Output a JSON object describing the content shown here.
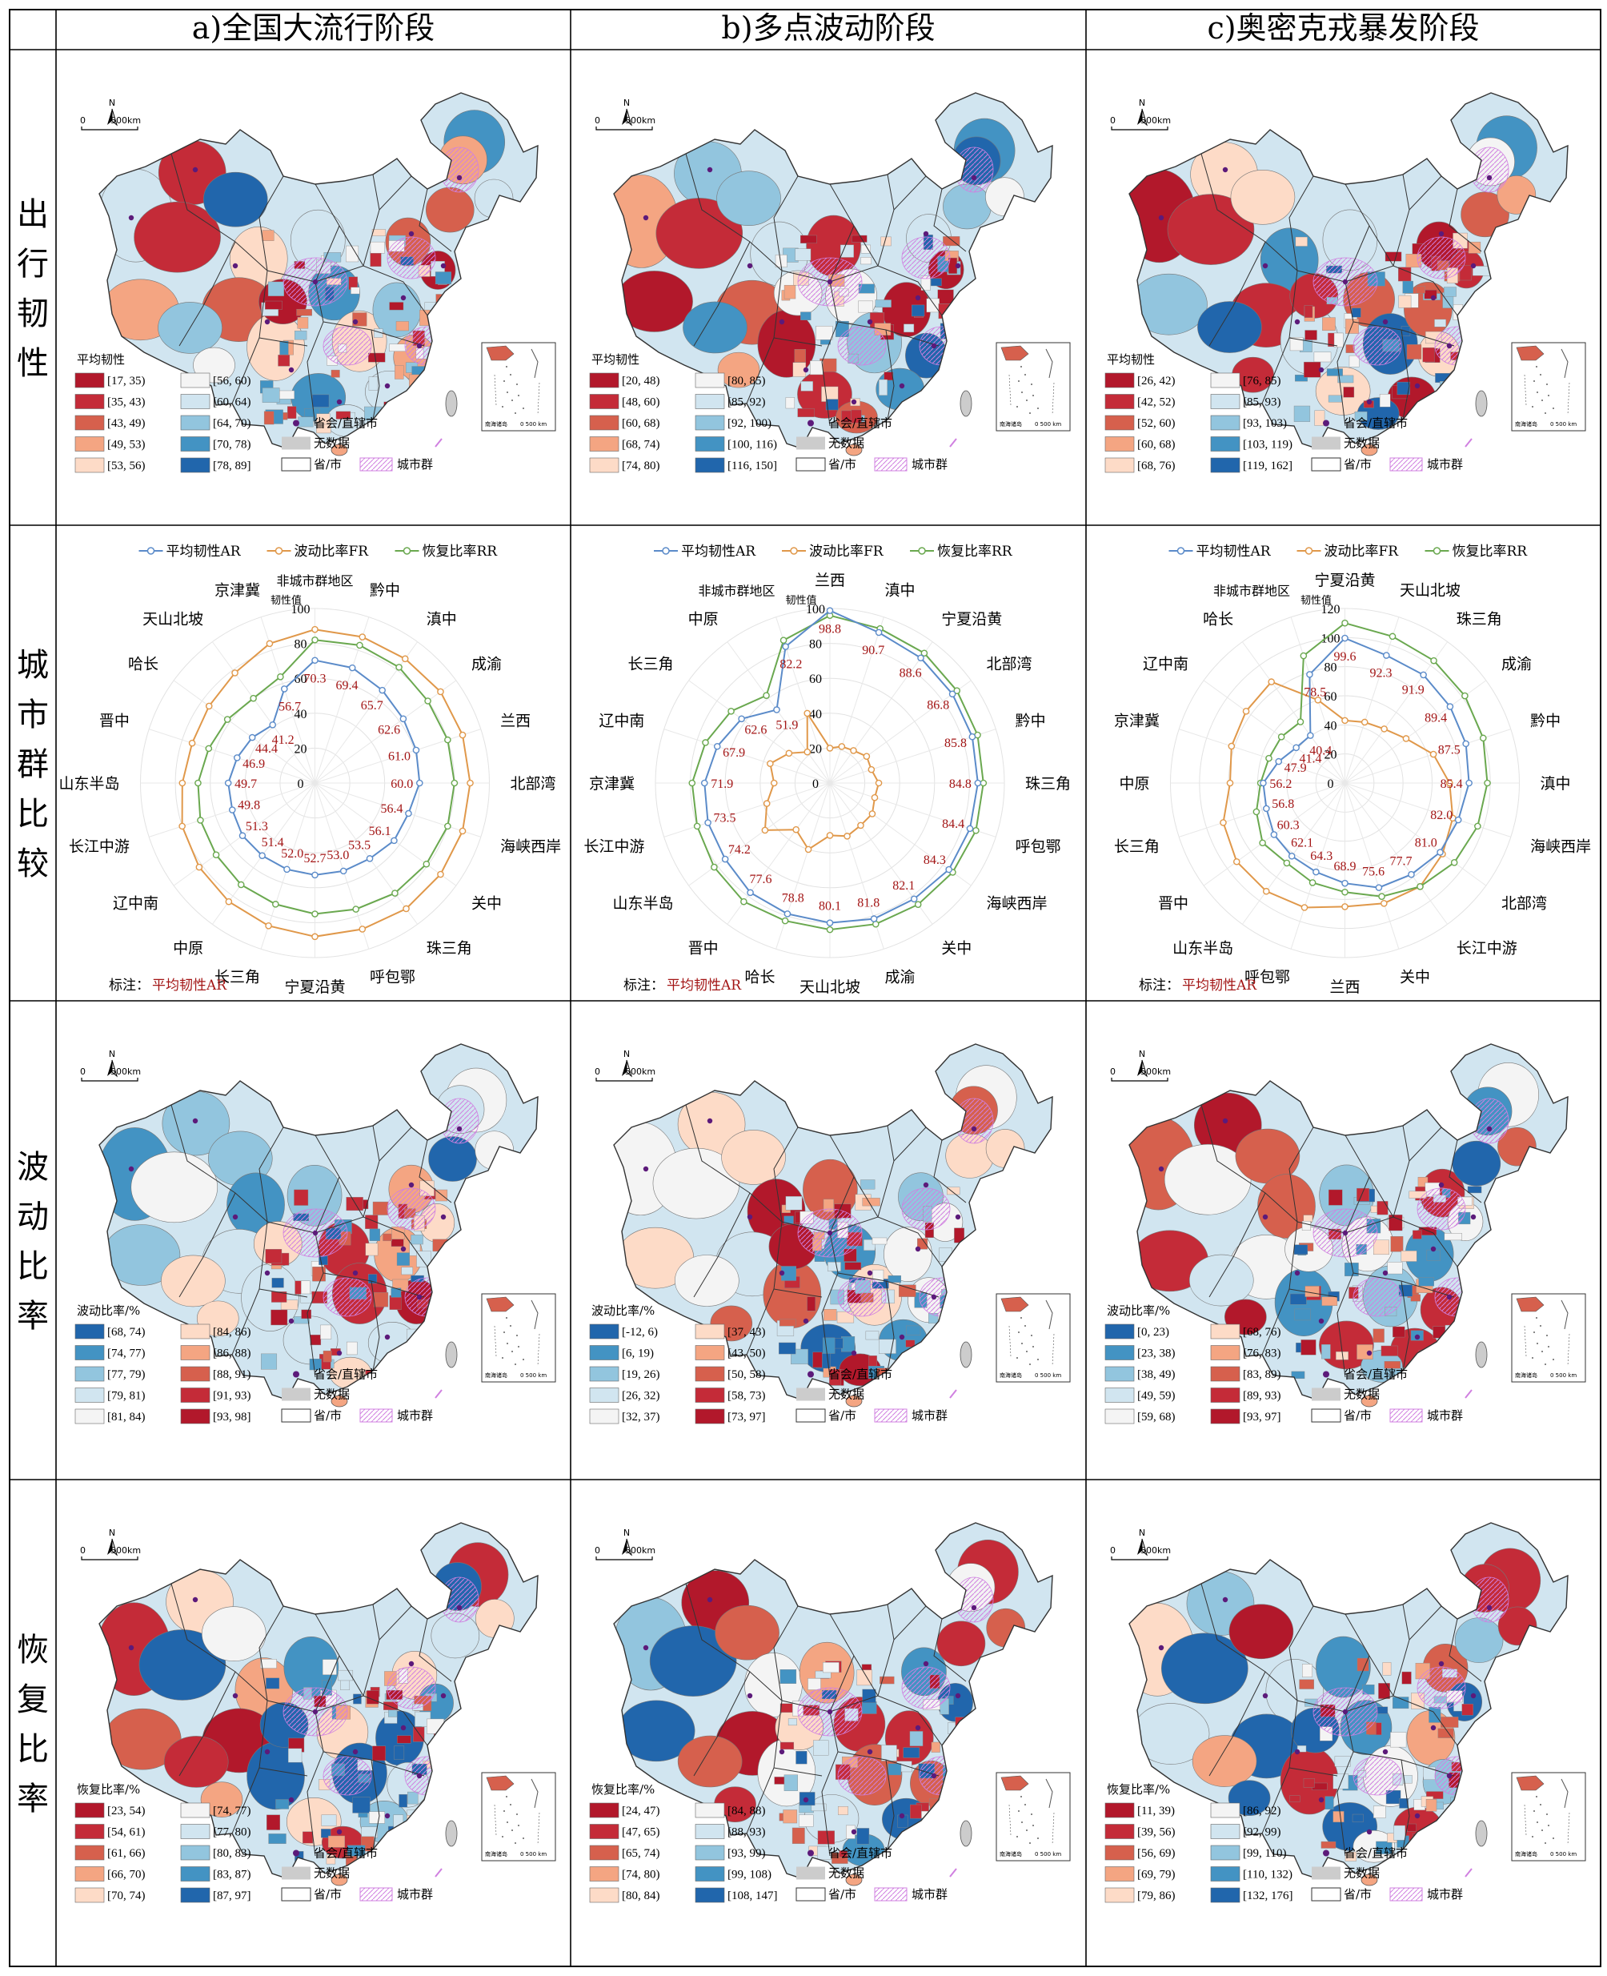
{
  "columns": [
    "a)全国大流行阶段",
    "b)多点波动阶段",
    "c)奥密克戎暴发阶段"
  ],
  "rows": [
    "出行韧性",
    "城市群比较",
    "波动比率",
    "恢复比率"
  ],
  "map_common": {
    "north": "N",
    "scale_zero": "0",
    "scale_label": "500km",
    "inset_label": "南海诸岛",
    "inset_scale": "0   500 km",
    "capital": "省会/直辖市",
    "nodata": "无数据",
    "province": "省/市",
    "agglomeration": "城市群"
  },
  "colors": {
    "red": [
      "#b2182b",
      "#c42b38",
      "#d6604d",
      "#f4a582",
      "#fddbc7"
    ],
    "blue": [
      "#f4f4f4",
      "#d1e5f0",
      "#92c5de",
      "#4393c3",
      "#2166ac"
    ],
    "nodata": "#cccccc",
    "capital": "#5c1a7a",
    "agglomeration": "#d080e0",
    "AR": "#5b8bc9",
    "FR": "#e0984a",
    "RR": "#6aa84f",
    "label": "#a31515"
  },
  "maps": {
    "travel": {
      "title": "平均韧性",
      "a": {
        "left": [
          "[17, 35)",
          "[35, 43)",
          "[43, 49)",
          "[49, 53)",
          "[53, 56)"
        ],
        "right": [
          "[56, 60)",
          "[60, 64)",
          "[64, 70)",
          "[70, 78)",
          "[78, 89]"
        ]
      },
      "b": {
        "left": [
          "[20, 48)",
          "[48, 60)",
          "[60, 68)",
          "[68, 74)",
          "[74, 80)"
        ],
        "right": [
          "[80, 85)",
          "[85, 92)",
          "[92, 100)",
          "[100, 116)",
          "[116, 150]"
        ]
      },
      "c": {
        "left": [
          "[26, 42)",
          "[42, 52)",
          "[52, 60)",
          "[60, 68)",
          "[68, 76)"
        ],
        "right": [
          "[76, 85)",
          "[85, 93)",
          "[93, 103)",
          "[103, 119)",
          "[119, 162]"
        ]
      }
    },
    "fluct": {
      "title": "波动比率/%",
      "a": {
        "left": [
          "[68, 74)",
          "[74, 77)",
          "[77, 79)",
          "[79, 81)",
          "[81, 84)"
        ],
        "right": [
          "[84, 86)",
          "[86, 88)",
          "[88, 91)",
          "[91, 93)",
          "[93, 98]"
        ]
      },
      "b": {
        "left": [
          "[-12, 6)",
          "[6, 19)",
          "[19, 26)",
          "[26, 32)",
          "[32, 37)"
        ],
        "right": [
          "[37, 43)",
          "[43, 50)",
          "[50, 58)",
          "[58, 73)",
          "[73, 97]"
        ]
      },
      "c": {
        "left": [
          "[0, 23)",
          "[23, 38)",
          "[38, 49)",
          "[49, 59)",
          "[59, 68)"
        ],
        "right": [
          "[68, 76)",
          "[76, 83)",
          "[83, 89)",
          "[89, 93)",
          "[93, 97]"
        ]
      }
    },
    "recov": {
      "title": "恢复比率/%",
      "a": {
        "left": [
          "[23, 54)",
          "[54, 61)",
          "[61, 66)",
          "[66, 70)",
          "[70, 74)"
        ],
        "right": [
          "[74, 77)",
          "[77, 80)",
          "[80, 83)",
          "[83, 87)",
          "[87, 97]"
        ]
      },
      "b": {
        "left": [
          "[24, 47)",
          "[47, 65)",
          "[65, 74)",
          "[74, 80)",
          "[80, 84)"
        ],
        "right": [
          "[84, 88)",
          "[88, 93)",
          "[93, 99)",
          "[99, 108)",
          "[108, 147]"
        ]
      },
      "c": {
        "left": [
          "[11, 39)",
          "[39, 56)",
          "[56, 69)",
          "[69, 79)",
          "[79, 86)"
        ],
        "right": [
          "[86, 92)",
          "[92, 99)",
          "[99, 110)",
          "[110, 132)",
          "[132, 176]"
        ]
      }
    }
  },
  "chart_data": [
    {
      "type": "radar",
      "panel": "a",
      "legend": [
        "平均韧性AR",
        "波动比率FR",
        "恢复比率RR"
      ],
      "axis_title": "韧性值",
      "ticks": [
        0,
        20,
        40,
        60,
        80,
        100
      ],
      "rmax": 100,
      "categories": [
        "非城市群地区",
        "黔中",
        "滇中",
        "成渝",
        "兰西",
        "北部湾",
        "海峡西岸",
        "关中",
        "珠三角",
        "呼包鄂",
        "宁夏沿黄",
        "长三角",
        "中原",
        "辽中南",
        "长江中游",
        "山东半岛",
        "晋中",
        "哈长",
        "天山北坡",
        "京津冀"
      ],
      "series": [
        {
          "name": "平均韧性AR",
          "values": [
            70.3,
            69.4,
            65.7,
            62.6,
            61.0,
            60.0,
            56.4,
            56.1,
            53.5,
            53.0,
            52.7,
            52.0,
            51.4,
            51.3,
            49.8,
            49.7,
            46.9,
            44.4,
            41.2,
            56.7
          ]
        },
        {
          "name": "波动比率FR",
          "values": [
            88,
            88,
            88,
            89,
            89,
            89,
            89,
            89,
            89,
            88,
            88,
            86,
            84,
            82,
            80,
            76,
            74,
            75,
            78,
            84
          ]
        },
        {
          "name": "恢复比率RR",
          "values": [
            82,
            83,
            82,
            80,
            80,
            80,
            80,
            79,
            78,
            76,
            75,
            73,
            72,
            70,
            69,
            67,
            64,
            62,
            60,
            64
          ]
        }
      ],
      "data_labels": [
        "70.3",
        "69.4",
        "65.7",
        "62.6",
        "61.0",
        "60.0",
        "56.4",
        "56.1",
        "53.5",
        "53.0",
        "52.7",
        "52.0",
        "51.4",
        "51.3",
        "49.8",
        "49.7",
        "46.9",
        "44.4",
        "41.2",
        "56.7"
      ],
      "note_label": "标注：",
      "note_value": "平均韧性AR"
    },
    {
      "type": "radar",
      "panel": "b",
      "legend": [
        "平均韧性AR",
        "波动比率FR",
        "恢复比率RR"
      ],
      "axis_title": "韧性值",
      "ticks": [
        0,
        20,
        40,
        60,
        80,
        100
      ],
      "rmax": 100,
      "categories": [
        "兰西",
        "滇中",
        "宁夏沿黄",
        "北部湾",
        "黔中",
        "珠三角",
        "呼包鄂",
        "海峡西岸",
        "关中",
        "成渝",
        "天山北坡",
        "哈长",
        "晋中",
        "山东半岛",
        "长江中游",
        "京津冀",
        "辽中南",
        "长三角",
        "中原",
        "非城市群地区"
      ],
      "series": [
        {
          "name": "平均韧性AR",
          "values": [
            98.8,
            90.7,
            88.6,
            86.8,
            85.8,
            84.8,
            84.4,
            84.3,
            82.1,
            81.8,
            80.1,
            78.8,
            77.6,
            74.2,
            73.5,
            71.9,
            67.9,
            62.6,
            51.9,
            82.2
          ]
        },
        {
          "name": "波动比率FR",
          "values": [
            20,
            22,
            23,
            26,
            25,
            28,
            27,
            30,
            30,
            32,
            30,
            40,
            33,
            46,
            38,
            32,
            36,
            29,
            22,
            42
          ]
        },
        {
          "name": "恢复比率RR",
          "values": [
            96,
            93,
            92,
            90,
            89,
            88,
            88,
            87,
            86,
            85,
            84,
            83,
            84,
            82,
            80,
            79,
            75,
            70,
            62,
            86
          ]
        }
      ],
      "data_labels": [
        "98.8",
        "90.7",
        "88.6",
        "86.8",
        "85.8",
        "84.8",
        "84.4",
        "84.3",
        "82.1",
        "81.8",
        "80.1",
        "78.8",
        "77.6",
        "74.2",
        "73.5",
        "71.9",
        "67.9",
        "62.6",
        "51.9",
        "82.2"
      ],
      "note_label": "标注：",
      "note_value": "平均韧性AR"
    },
    {
      "type": "radar",
      "panel": "c",
      "legend": [
        "平均韧性AR",
        "波动比率FR",
        "恢复比率RR"
      ],
      "axis_title": "韧性值",
      "ticks": [
        0,
        20,
        40,
        60,
        80,
        100,
        120
      ],
      "rmax": 120,
      "categories": [
        "宁夏沿黄",
        "天山北坡",
        "珠三角",
        "成渝",
        "黔中",
        "滇中",
        "海峡西岸",
        "北部湾",
        "长江中游",
        "关中",
        "兰西",
        "呼包鄂",
        "山东半岛",
        "晋中",
        "长三角",
        "中原",
        "京津冀",
        "辽中南",
        "哈长",
        "非城市群地区"
      ],
      "series": [
        {
          "name": "平均韧性AR",
          "values": [
            99.6,
            92.3,
            91.9,
            89.4,
            87.5,
            85.4,
            82.0,
            81.0,
            77.7,
            75.6,
            68.9,
            64.3,
            62.1,
            60.3,
            56.8,
            56.2,
            47.9,
            41.4,
            40.4,
            78.5
          ]
        },
        {
          "name": "波动比率FR",
          "values": [
            43,
            44,
            46,
            52,
            64,
            72,
            78,
            83,
            88,
            87,
            85,
            90,
            92,
            92,
            88,
            79,
            82,
            84,
            86,
            60
          ]
        },
        {
          "name": "恢复比率RR",
          "values": [
            110,
            106,
            104,
            102,
            100,
            98,
            96,
            93,
            88,
            82,
            75,
            72,
            68,
            70,
            64,
            58,
            55,
            54,
            52,
            92
          ]
        }
      ],
      "data_labels": [
        "99.6",
        "92.3",
        "91.9",
        "89.4",
        "87.5",
        "85.4",
        "82.0",
        "81.0",
        "77.7",
        "75.6",
        "68.9",
        "64.3",
        "62.1",
        "60.3",
        "56.8",
        "56.2",
        "47.9",
        "41.4",
        "40.4",
        "78.5"
      ],
      "note_label": "标注：",
      "note_value": "平均韧性AR"
    }
  ]
}
